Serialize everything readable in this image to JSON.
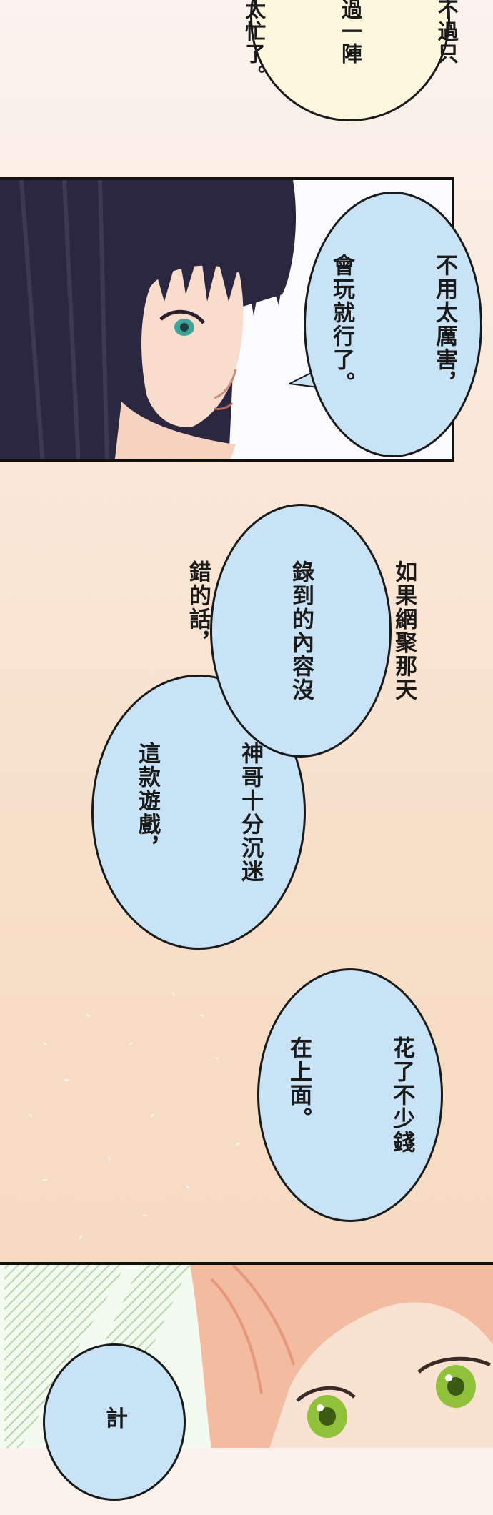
{
  "bubbles": {
    "b1": {
      "lines": [
        "不過只",
        "過一陣",
        "太忙了。"
      ]
    },
    "b2": {
      "lines": [
        "不用太厲害，",
        "會玩就行了。"
      ]
    },
    "b3": {
      "lines": [
        "如果網聚那天",
        "錄到的內容沒",
        "錯的話，"
      ]
    },
    "b4": {
      "lines": [
        "神哥十分沉迷",
        "這款遊戲，"
      ]
    },
    "b5": {
      "lines": [
        "花了不少錢",
        "在上面。"
      ]
    },
    "b6": {
      "lines": [
        "計"
      ]
    }
  },
  "characters": {
    "panel1": "dark-haired-woman-profile",
    "panel2": "pink-haired-person-green-eyes"
  },
  "colors": {
    "bubble_blue": "#c7e3f5",
    "bubble_yellow": "#fdf8dd",
    "hair_dark": "#2b2740",
    "hair_pink": "#f3bba0",
    "eye_green": "#8fc23a"
  }
}
